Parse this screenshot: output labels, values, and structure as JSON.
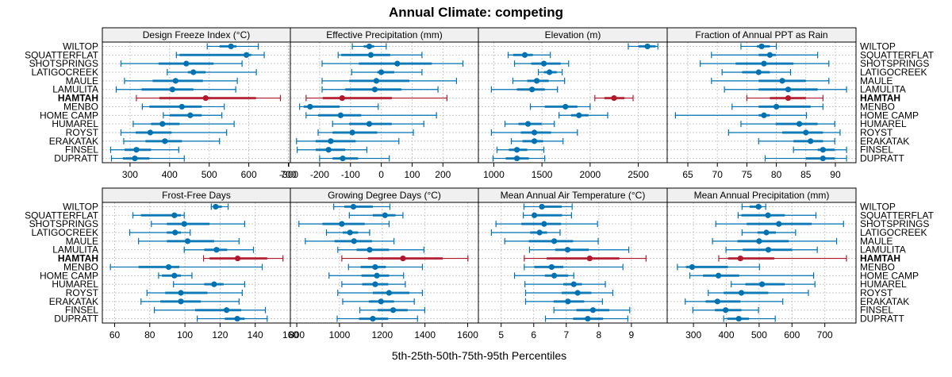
{
  "chart_data": {
    "type": "dotplot-percentile-intervals",
    "title": "Annual Climate: competing",
    "xlabel": "5th-25th-50th-75th-95th Percentiles",
    "ylabel": "",
    "grid": true,
    "legend": "none",
    "colors": {
      "default": "#0072b2",
      "highlight": "#b2182b",
      "strip_bg": "#f0f0f0",
      "grid": "#c8c8c8"
    },
    "sites": [
      "WILTOP",
      "SQUATTERFLAT",
      "SHOTSPRINGS",
      "LATIGOCREEK",
      "MAULE",
      "LAMULITA",
      "HAMTAH",
      "MENBO",
      "HOME CAMP",
      "HUMAREL",
      "ROYST",
      "ERAKATAK",
      "FINSEL",
      "DUPRATT"
    ],
    "highlight_site": "HAMTAH",
    "percentile_order": [
      "p5",
      "p25",
      "p50",
      "p75",
      "p95"
    ],
    "panels": [
      {
        "name": "Design Freeze Index (°C)",
        "xlim": [
          230,
          705
        ],
        "ticks": [
          300,
          400,
          500,
          600,
          700
        ],
        "values": [
          [
            495,
            526,
            555,
            569,
            624
          ],
          [
            417,
            425,
            594,
            606,
            639
          ],
          [
            277,
            372,
            442,
            511,
            583
          ],
          [
            394,
            446,
            460,
            491,
            619
          ],
          [
            286,
            357,
            415,
            484,
            571
          ],
          [
            265,
            329,
            407,
            460,
            567
          ],
          [
            316,
            374,
            491,
            618,
            680
          ],
          [
            331,
            349,
            431,
            481,
            538
          ],
          [
            384,
            400,
            452,
            481,
            532
          ],
          [
            308,
            353,
            382,
            425,
            563
          ],
          [
            277,
            314,
            351,
            405,
            544
          ],
          [
            284,
            339,
            388,
            431,
            526
          ],
          [
            251,
            286,
            316,
            353,
            423
          ],
          [
            253,
            282,
            312,
            349,
            437
          ]
        ]
      },
      {
        "name": "Effective Precipitation (mm)",
        "xlim": [
          -295,
          315
        ],
        "ticks": [
          -300,
          -200,
          -100,
          0,
          100,
          200
        ],
        "values": [
          [
            -94,
            -57,
            -39,
            -23,
            16
          ],
          [
            -140,
            -130,
            -34,
            29,
            132
          ],
          [
            -192,
            -73,
            52,
            164,
            265
          ],
          [
            -96,
            -13,
            0,
            42,
            132
          ],
          [
            -192,
            -104,
            -16,
            91,
            244
          ],
          [
            -192,
            -117,
            -21,
            65,
            184
          ],
          [
            -244,
            -190,
            -127,
            34,
            213
          ],
          [
            -265,
            -252,
            -231,
            -135,
            -10
          ],
          [
            -244,
            -205,
            -132,
            -65,
            179
          ],
          [
            -158,
            -104,
            -39,
            34,
            138
          ],
          [
            -205,
            -158,
            -94,
            -13,
            104
          ],
          [
            -275,
            -213,
            -164,
            -83,
            57
          ],
          [
            -273,
            -213,
            -171,
            -117,
            -47
          ],
          [
            -200,
            -158,
            -125,
            -75,
            26
          ]
        ]
      },
      {
        "name": "Elevation (m)",
        "xlim": [
          840,
          2800
        ],
        "ticks": [
          1000,
          1500,
          2000,
          2500
        ],
        "values": [
          [
            2396,
            2500,
            2595,
            2680,
            2703
          ],
          [
            1149,
            1200,
            1322,
            1405,
            1587
          ],
          [
            1215,
            1388,
            1520,
            1694,
            1777
          ],
          [
            1463,
            1520,
            1578,
            1653,
            1710
          ],
          [
            1198,
            1347,
            1446,
            1570,
            1735
          ],
          [
            975,
            1240,
            1397,
            1529,
            1661
          ],
          [
            2049,
            2148,
            2248,
            2355,
            2446
          ],
          [
            1380,
            1529,
            1744,
            1868,
            2000
          ],
          [
            1677,
            1802,
            1884,
            1983,
            2182
          ],
          [
            1116,
            1256,
            1355,
            1496,
            1628
          ],
          [
            975,
            1281,
            1421,
            1595,
            1868
          ],
          [
            1182,
            1298,
            1421,
            1512,
            1719
          ],
          [
            1033,
            1157,
            1240,
            1347,
            1520
          ],
          [
            992,
            1124,
            1240,
            1364,
            1529
          ]
        ]
      },
      {
        "name": "Fraction of Annual PPT as Rain",
        "xlim": [
          61.5,
          93.5
        ],
        "ticks": [
          65,
          70,
          75,
          80,
          85,
          90
        ],
        "values": [
          [
            74.0,
            76.7,
            77.5,
            78.9,
            80.0
          ],
          [
            69.0,
            77.0,
            78.9,
            79.9,
            87.0
          ],
          [
            67.1,
            73.1,
            77.9,
            82.9,
            88.9
          ],
          [
            70.8,
            74.2,
            77.0,
            78.9,
            82.4
          ],
          [
            69.0,
            77.0,
            81.0,
            85.0,
            88.9
          ],
          [
            71.2,
            77.0,
            82.0,
            87.0,
            91.9
          ],
          [
            75.0,
            78.9,
            82.0,
            85.0,
            87.9
          ],
          [
            72.5,
            77.0,
            80.0,
            85.8,
            87.9
          ],
          [
            62.9,
            77.0,
            77.9,
            78.9,
            85.1
          ],
          [
            74.0,
            79.9,
            83.9,
            87.0,
            89.9
          ],
          [
            71.9,
            81.0,
            85.0,
            87.9,
            90.8
          ],
          [
            77.0,
            82.9,
            85.8,
            87.9,
            89.9
          ],
          [
            82.9,
            87.0,
            87.9,
            89.9,
            91.9
          ],
          [
            78.1,
            85.0,
            87.9,
            89.9,
            91.9
          ]
        ]
      },
      {
        "name": "Frost-Free Days",
        "xlim": [
          53,
          160
        ],
        "ticks": [
          60,
          80,
          100,
          120,
          140,
          160
        ],
        "values": [
          [
            115.0,
            116.0,
            117.5,
            121.0,
            124.6
          ],
          [
            70.4,
            75.0,
            94.0,
            97.7,
            99.6
          ],
          [
            80.9,
            89.7,
            99.6,
            114.0,
            134.0
          ],
          [
            68.6,
            89.7,
            94.4,
            97.7,
            103.0
          ],
          [
            73.6,
            89.7,
            101.5,
            116.6,
            130.8
          ],
          [
            99.6,
            111.0,
            118.0,
            124.0,
            139.0
          ],
          [
            110.6,
            114.0,
            130.0,
            146.8,
            155.8
          ],
          [
            57.6,
            73.6,
            90.7,
            96.8,
            144.0
          ],
          [
            85.0,
            86.9,
            94.0,
            97.7,
            104.0
          ],
          [
            93.5,
            111.0,
            116.6,
            122.0,
            134.0
          ],
          [
            78.4,
            88.8,
            97.7,
            112.8,
            132.6
          ],
          [
            75.0,
            86.0,
            97.7,
            109.0,
            130.8
          ],
          [
            82.6,
            105.8,
            123.7,
            132.0,
            145.8
          ],
          [
            107.0,
            122.7,
            129.8,
            134.0,
            146.8
          ]
        ]
      },
      {
        "name": "Growing Degree Days (°C)",
        "xlim": [
          770,
          1650
        ],
        "ticks": [
          800,
          1000,
          1200,
          1400,
          1600
        ],
        "values": [
          [
            973,
            1023,
            1065,
            1156,
            1236
          ],
          [
            1046,
            1156,
            1213,
            1262,
            1297
          ],
          [
            810,
            920,
            1011,
            1118,
            1232
          ],
          [
            939,
            1015,
            1049,
            1087,
            1141
          ],
          [
            840,
            977,
            1068,
            1152,
            1255
          ],
          [
            992,
            1080,
            1141,
            1232,
            1395
          ],
          [
            1011,
            1133,
            1297,
            1483,
            1601
          ],
          [
            1042,
            1099,
            1167,
            1217,
            1388
          ],
          [
            951,
            1103,
            1175,
            1232,
            1300
          ],
          [
            1011,
            1106,
            1167,
            1228,
            1308
          ],
          [
            992,
            1156,
            1232,
            1327,
            1388
          ],
          [
            1015,
            1137,
            1194,
            1255,
            1350
          ],
          [
            1095,
            1179,
            1251,
            1319,
            1399
          ],
          [
            989,
            1091,
            1156,
            1228,
            1365
          ]
        ]
      },
      {
        "name": "Mean Annual Air Temperature (°C)",
        "xlim": [
          4.3,
          10.1
        ],
        "ticks": [
          5,
          6,
          7,
          8,
          9
        ],
        "values": [
          [
            5.7,
            6.18,
            6.25,
            6.86,
            7.18
          ],
          [
            5.68,
            5.98,
            6.02,
            6.87,
            7.16
          ],
          [
            4.84,
            5.62,
            6.32,
            6.84,
            7.96
          ],
          [
            4.7,
            5.89,
            6.18,
            6.41,
            6.81
          ],
          [
            5.11,
            5.85,
            6.63,
            7.21,
            7.98
          ],
          [
            5.87,
            6.66,
            7.04,
            7.69,
            8.92
          ],
          [
            5.71,
            6.4,
            7.72,
            8.63,
            9.45
          ],
          [
            5.71,
            6.02,
            6.55,
            6.91,
            8.74
          ],
          [
            5.41,
            6.34,
            6.63,
            7.06,
            7.23
          ],
          [
            5.73,
            6.91,
            7.23,
            7.48,
            8.2
          ],
          [
            5.75,
            6.86,
            7.35,
            7.77,
            8.43
          ],
          [
            5.75,
            6.61,
            7.05,
            7.55,
            8.11
          ],
          [
            6.62,
            7.31,
            7.82,
            8.32,
            8.95
          ],
          [
            6.36,
            7.21,
            7.66,
            8.13,
            8.89
          ]
        ]
      },
      {
        "name": "Mean Annual Precipitation (mm)",
        "xlim": [
          220,
          795
        ],
        "ticks": [
          300,
          400,
          500,
          600,
          700
        ],
        "values": [
          [
            448,
            471,
            498,
            508,
            520
          ],
          [
            436,
            446,
            527,
            578,
            673
          ],
          [
            368,
            462,
            560,
            660,
            757
          ],
          [
            448,
            495,
            522,
            551,
            611
          ],
          [
            358,
            434,
            500,
            590,
            736
          ],
          [
            399,
            450,
            528,
            601,
            677
          ],
          [
            377,
            405,
            443,
            546,
            766
          ],
          [
            251,
            277,
            296,
            405,
            501
          ],
          [
            289,
            329,
            376,
            439,
            666
          ],
          [
            415,
            458,
            509,
            578,
            670
          ],
          [
            345,
            392,
            446,
            528,
            650
          ],
          [
            275,
            337,
            373,
            443,
            572
          ],
          [
            298,
            365,
            398,
            446,
            498
          ],
          [
            392,
            403,
            438,
            469,
            549
          ]
        ]
      }
    ]
  }
}
